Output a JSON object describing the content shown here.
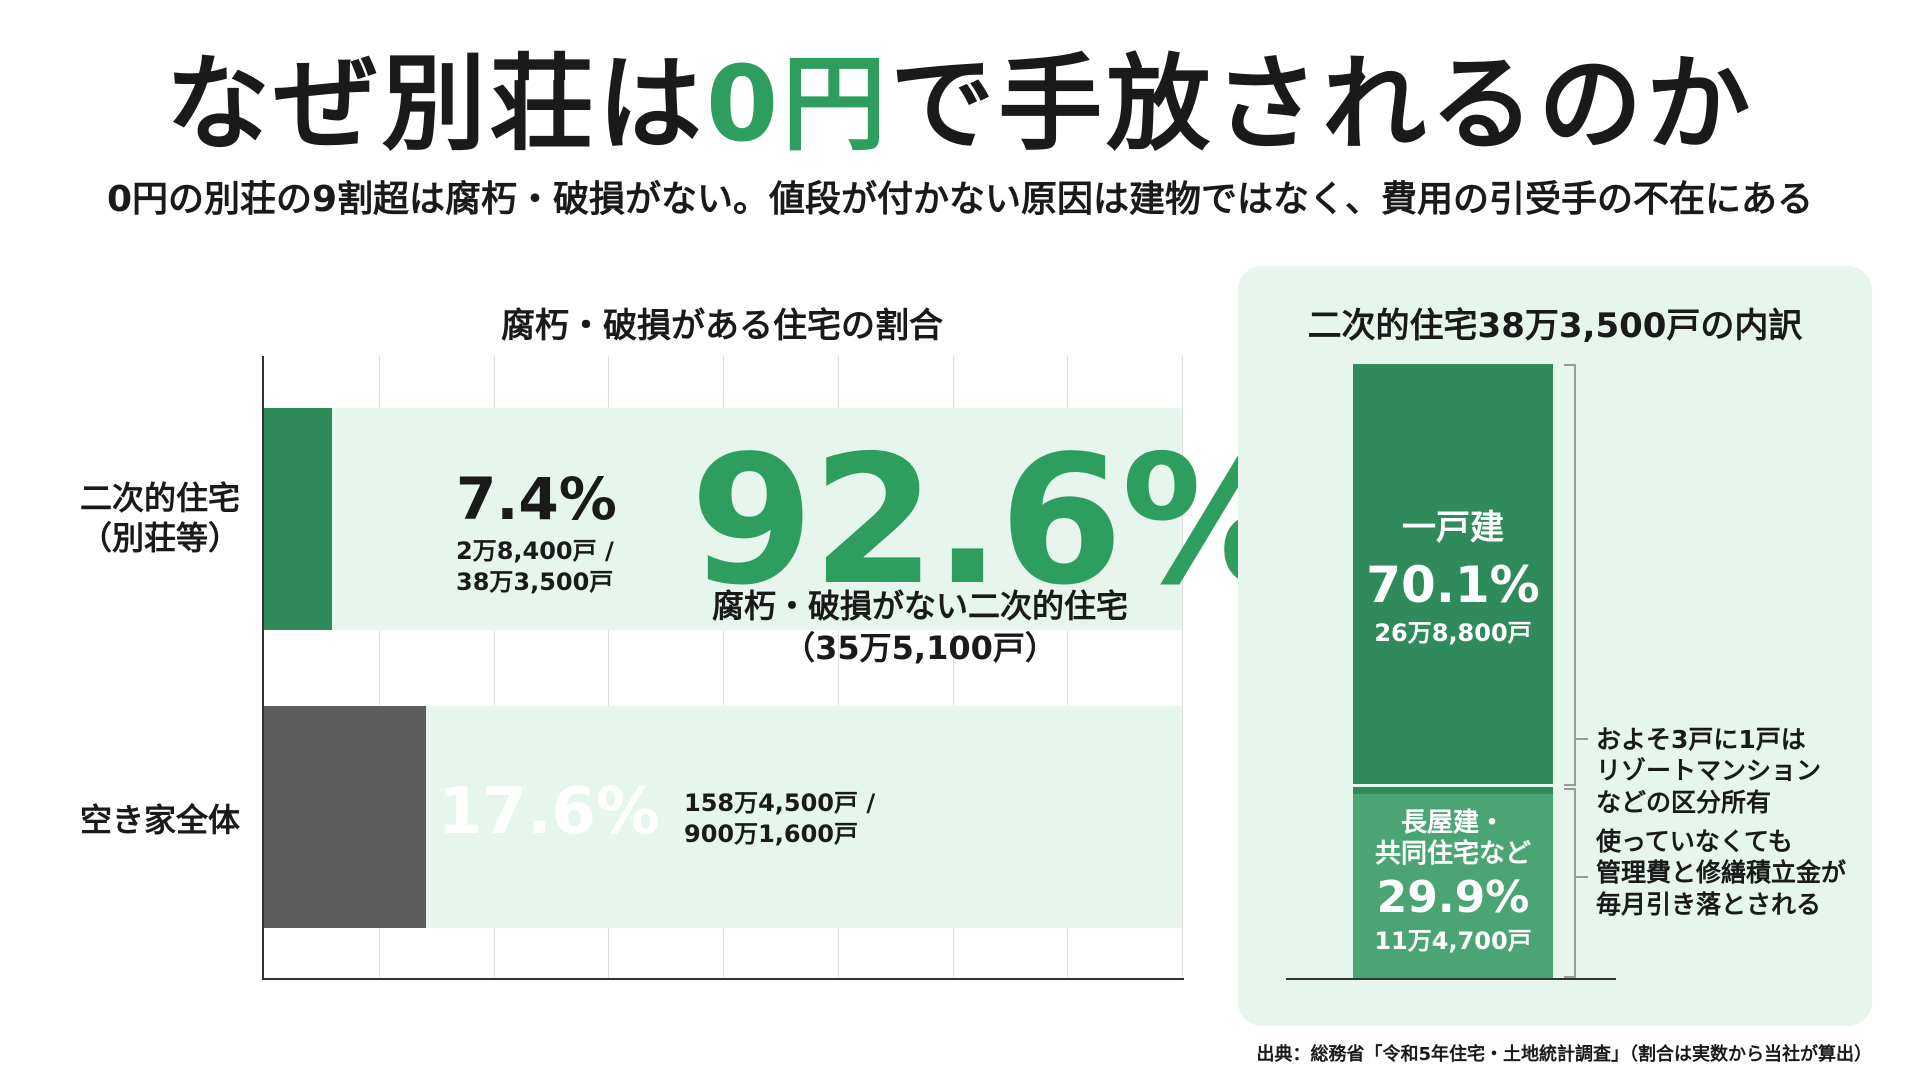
{
  "title": {
    "pre": "なぜ別荘は",
    "accent": "0円",
    "post": "で手放されるのか"
  },
  "subtitle": "0円の別荘の9割超は腐朽・破損がない。値段が付かない原因は建物ではなく、費用の引受手の不在にある",
  "colors": {
    "accent": "#2e9e5e",
    "bar_green": "#2f8c5a",
    "bar_gray": "#5d5d5d",
    "panel_bg": "#e7f6ec"
  },
  "chart_data": [
    {
      "type": "bar",
      "title": "腐朽・破損がある住宅の割合",
      "orientation": "horizontal",
      "xlim": [
        0,
        100
      ],
      "grid": true,
      "categories": [
        "二次的住宅（別荘等）",
        "空き家全体"
      ],
      "rows": [
        {
          "label_line1": "二次的住宅",
          "label_line2": "（別荘等）",
          "value": 7.4,
          "value_label": "7.4%",
          "count_line1": "2万8,400戸 /",
          "count_line2": "38万3,500戸",
          "remainder_value": 92.6,
          "remainder_label": "92.6%",
          "remainder_caption_line1": "腐朽・破損がない二次的住宅",
          "remainder_caption_line2": "（35万5,100戸）"
        },
        {
          "label_line1": "空き家全体",
          "label_line2": "",
          "value": 17.6,
          "value_label": "17.6%",
          "count_line1": "158万4,500戸 /",
          "count_line2": "900万1,600戸"
        }
      ]
    },
    {
      "type": "bar",
      "stacked": true,
      "title": "二次的住宅38万3,500戸の内訳",
      "segments": [
        {
          "name": "一戸建",
          "value": 70.1,
          "value_label": "70.1%",
          "count": "26万8,800戸"
        },
        {
          "name_line1": "長屋建・",
          "name_line2": "共同住宅など",
          "value": 29.9,
          "value_label": "29.9%",
          "count": "11万4,700戸"
        }
      ],
      "notes": {
        "upper": [
          "およそ3戸に1戸は",
          "リゾートマンション",
          "などの区分所有"
        ],
        "lower": [
          "使っていなくても",
          "管理費と修繕積立金が",
          "毎月引き落とされる"
        ]
      }
    }
  ],
  "source": "出典：総務省「令和5年住宅・土地統計調査」（割合は実数から当社が算出）"
}
